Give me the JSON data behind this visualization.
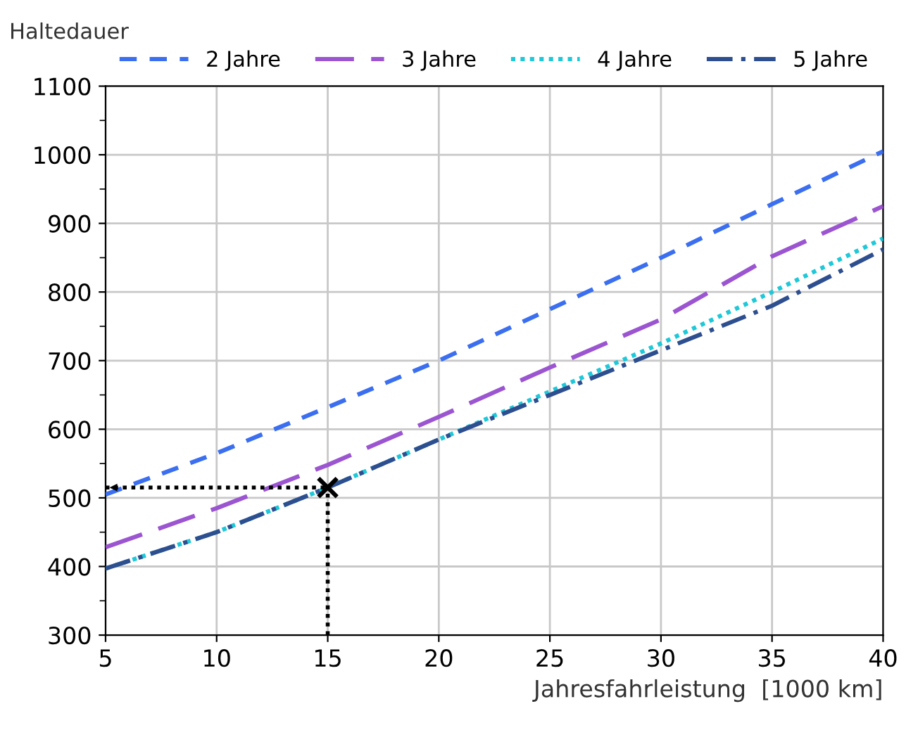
{
  "chart_data": {
    "type": "line",
    "xlabel": "Jahresfahrleistung  [1000 km]",
    "legend_title": "Haltedauer",
    "x": [
      5,
      10,
      15,
      20,
      25,
      30,
      35,
      40
    ],
    "series": [
      {
        "name": "2 Jahre",
        "color": "#3b6ff0",
        "line_style": "dashed",
        "values": [
          505,
          565,
          632,
          700,
          775,
          850,
          928,
          1005
        ]
      },
      {
        "name": "3 Jahre",
        "color": "#9b55d0",
        "line_style": "longdashed",
        "values": [
          428,
          485,
          548,
          618,
          690,
          760,
          852,
          925
        ]
      },
      {
        "name": "4 Jahre",
        "color": "#1fc8d8",
        "line_style": "dotted",
        "values": [
          397,
          450,
          515,
          585,
          655,
          725,
          800,
          878
        ]
      },
      {
        "name": "5 Jahre",
        "color": "#2d4f8f",
        "line_style": "dashdot",
        "values": [
          397,
          450,
          515,
          585,
          650,
          715,
          780,
          862
        ]
      },
      {
        "type": "scatter",
        "color": "#000000",
        "marker": "cross",
        "x": [
          15
        ],
        "values": [
          515
        ]
      }
    ],
    "ref_lines": [
      {
        "axis": "x",
        "value": 15,
        "color": "#000000",
        "line_style": "dotted"
      },
      {
        "axis": "y",
        "value": 515,
        "color": "#000000",
        "line_style": "dotted"
      }
    ],
    "xlim": [
      5,
      40
    ],
    "xticks": [
      5,
      10,
      15,
      20,
      25,
      30,
      35,
      40
    ],
    "ylim": [
      300,
      1100
    ],
    "yticks": [
      300,
      400,
      500,
      600,
      700,
      800,
      900,
      1000,
      1100
    ],
    "grid": true,
    "legend": "top",
    "marker": "none"
  }
}
